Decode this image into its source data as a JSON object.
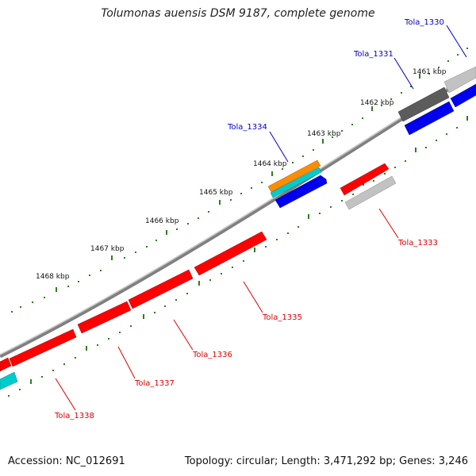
{
  "title": "Tolumonas auensis DSM 9187, complete genome",
  "footer": {
    "accession": "Accession: NC_012691",
    "summary": "Topology: circular; Length: 3,471,292 bp; Genes: 3,246"
  },
  "colors": {
    "backbone": "#8c8c8c",
    "tick": "#2e7d1e",
    "forward_gene": "#ff0000",
    "reverse_gene": "#0000ee",
    "rna_gene_orange": "#ff8c00",
    "rna_gene_cyan": "#00cccc",
    "pseudo_gene_gray": "#bdbdbd",
    "dark_gene": "#5a5a5a",
    "label_blue": "#0000cc",
    "label_red": "#dd0000"
  },
  "kbp_labels": [
    "1461 kbp",
    "1462 kbp",
    "1463 kbp",
    "1464 kbp",
    "1465 kbp",
    "1466 kbp",
    "1467 kbp",
    "1468 kbp"
  ],
  "gene_labels": {
    "outer": [
      "Tola_1330",
      "Tola_1331",
      "Tola_1334"
    ],
    "inner": [
      "Tola_1333",
      "Tola_1335",
      "Tola_1336",
      "Tola_1337",
      "Tola_1338"
    ]
  }
}
